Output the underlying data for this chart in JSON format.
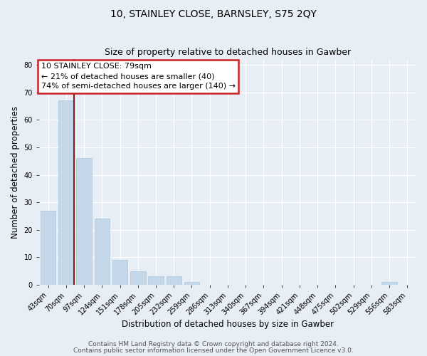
{
  "title": "10, STAINLEY CLOSE, BARNSLEY, S75 2QY",
  "subtitle": "Size of property relative to detached houses in Gawber",
  "xlabel": "Distribution of detached houses by size in Gawber",
  "ylabel": "Number of detached properties",
  "bar_labels": [
    "43sqm",
    "70sqm",
    "97sqm",
    "124sqm",
    "151sqm",
    "178sqm",
    "205sqm",
    "232sqm",
    "259sqm",
    "286sqm",
    "313sqm",
    "340sqm",
    "367sqm",
    "394sqm",
    "421sqm",
    "448sqm",
    "475sqm",
    "502sqm",
    "529sqm",
    "556sqm",
    "583sqm"
  ],
  "bar_values": [
    27,
    67,
    46,
    24,
    9,
    5,
    3,
    3,
    1,
    0,
    0,
    0,
    0,
    0,
    0,
    0,
    0,
    0,
    0,
    1,
    0
  ],
  "bar_color": "#c5d8ea",
  "bar_edge_color": "#aac4db",
  "ylim": [
    0,
    82
  ],
  "yticks": [
    0,
    10,
    20,
    30,
    40,
    50,
    60,
    70,
    80
  ],
  "property_label": "10 STAINLEY CLOSE: 79sqm",
  "annotation_line1": "← 21% of detached houses are smaller (40)",
  "annotation_line2": "74% of semi-detached houses are larger (140) →",
  "vline_color": "#8b1a1a",
  "annotation_box_edgecolor": "#cc2222",
  "footer1": "Contains HM Land Registry data © Crown copyright and database right 2024.",
  "footer2": "Contains public sector information licensed under the Open Government Licence v3.0.",
  "background_color": "#e8eef5",
  "plot_bg_color": "#e8eef5",
  "grid_color": "#ffffff",
  "title_fontsize": 10,
  "subtitle_fontsize": 9,
  "axis_label_fontsize": 8.5,
  "tick_fontsize": 7,
  "annotation_fontsize": 8,
  "footer_fontsize": 6.5
}
